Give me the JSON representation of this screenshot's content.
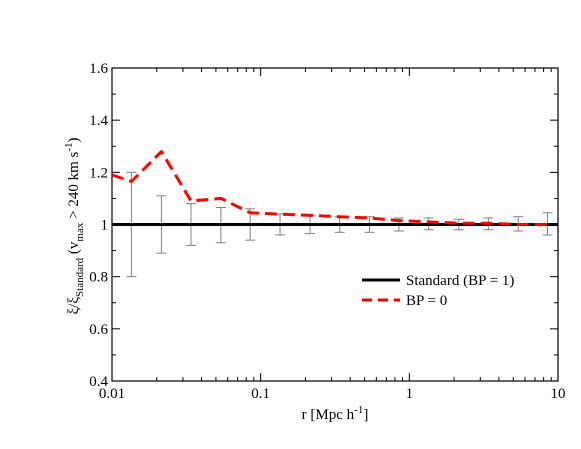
{
  "chart_data": {
    "type": "line",
    "title": "",
    "x_scale": "log",
    "xlim": [
      0.01,
      10
    ],
    "ylim": [
      0.4,
      1.6
    ],
    "x_ticks": [
      {
        "value": 0.01,
        "label": "0.01"
      },
      {
        "value": 0.1,
        "label": "0.1"
      },
      {
        "value": 1,
        "label": "1"
      },
      {
        "value": 10,
        "label": "10"
      }
    ],
    "y_ticks": [
      {
        "value": 0.4,
        "label": "0.4"
      },
      {
        "value": 0.6,
        "label": "0.6"
      },
      {
        "value": 0.8,
        "label": "0.8"
      },
      {
        "value": 1.0,
        "label": "1"
      },
      {
        "value": 1.2,
        "label": "1.2"
      },
      {
        "value": 1.4,
        "label": "1.4"
      },
      {
        "value": 1.6,
        "label": "1.6"
      }
    ],
    "xlabel": {
      "main": "r [Mpc h",
      "sup": "-1",
      "tail": "]"
    },
    "ylabel": {
      "p1": "ξ/ξ",
      "sub1": "Standard",
      "p2": " (v",
      "sub2": "max",
      "p3": " > 240 km s",
      "sup": "-1",
      "p4": ")"
    },
    "legend_position": "lower-right",
    "series": [
      {
        "name": "Standard (BP = 1)",
        "color": "#000000",
        "style": "solid",
        "x": [
          0.01,
          10
        ],
        "y": [
          1.0,
          1.0
        ]
      },
      {
        "name": "BP = 0",
        "color": "#ff0000",
        "style": "dashed",
        "x": [
          0.01,
          0.0135,
          0.0215,
          0.034,
          0.054,
          0.085,
          0.135,
          0.215,
          0.34,
          0.54,
          0.85,
          1.35,
          2.15,
          3.4,
          5.4,
          8.5
        ],
        "y": [
          1.19,
          1.165,
          1.28,
          1.09,
          1.1,
          1.045,
          1.04,
          1.035,
          1.03,
          1.025,
          1.015,
          1.01,
          1.005,
          1.005,
          1.0,
          1.0
        ]
      }
    ],
    "error_bars": {
      "color": "#808080",
      "x": [
        0.0135,
        0.0215,
        0.034,
        0.054,
        0.085,
        0.135,
        0.215,
        0.34,
        0.54,
        0.85,
        1.35,
        2.15,
        3.4,
        5.4,
        8.5
      ],
      "low": [
        0.8,
        0.89,
        0.92,
        0.93,
        0.94,
        0.96,
        0.965,
        0.97,
        0.97,
        0.975,
        0.98,
        0.98,
        0.98,
        0.975,
        0.96
      ],
      "high": [
        1.2,
        1.11,
        1.08,
        1.065,
        1.06,
        1.04,
        1.035,
        1.03,
        1.03,
        1.025,
        1.025,
        1.02,
        1.025,
        1.03,
        1.045
      ]
    }
  }
}
